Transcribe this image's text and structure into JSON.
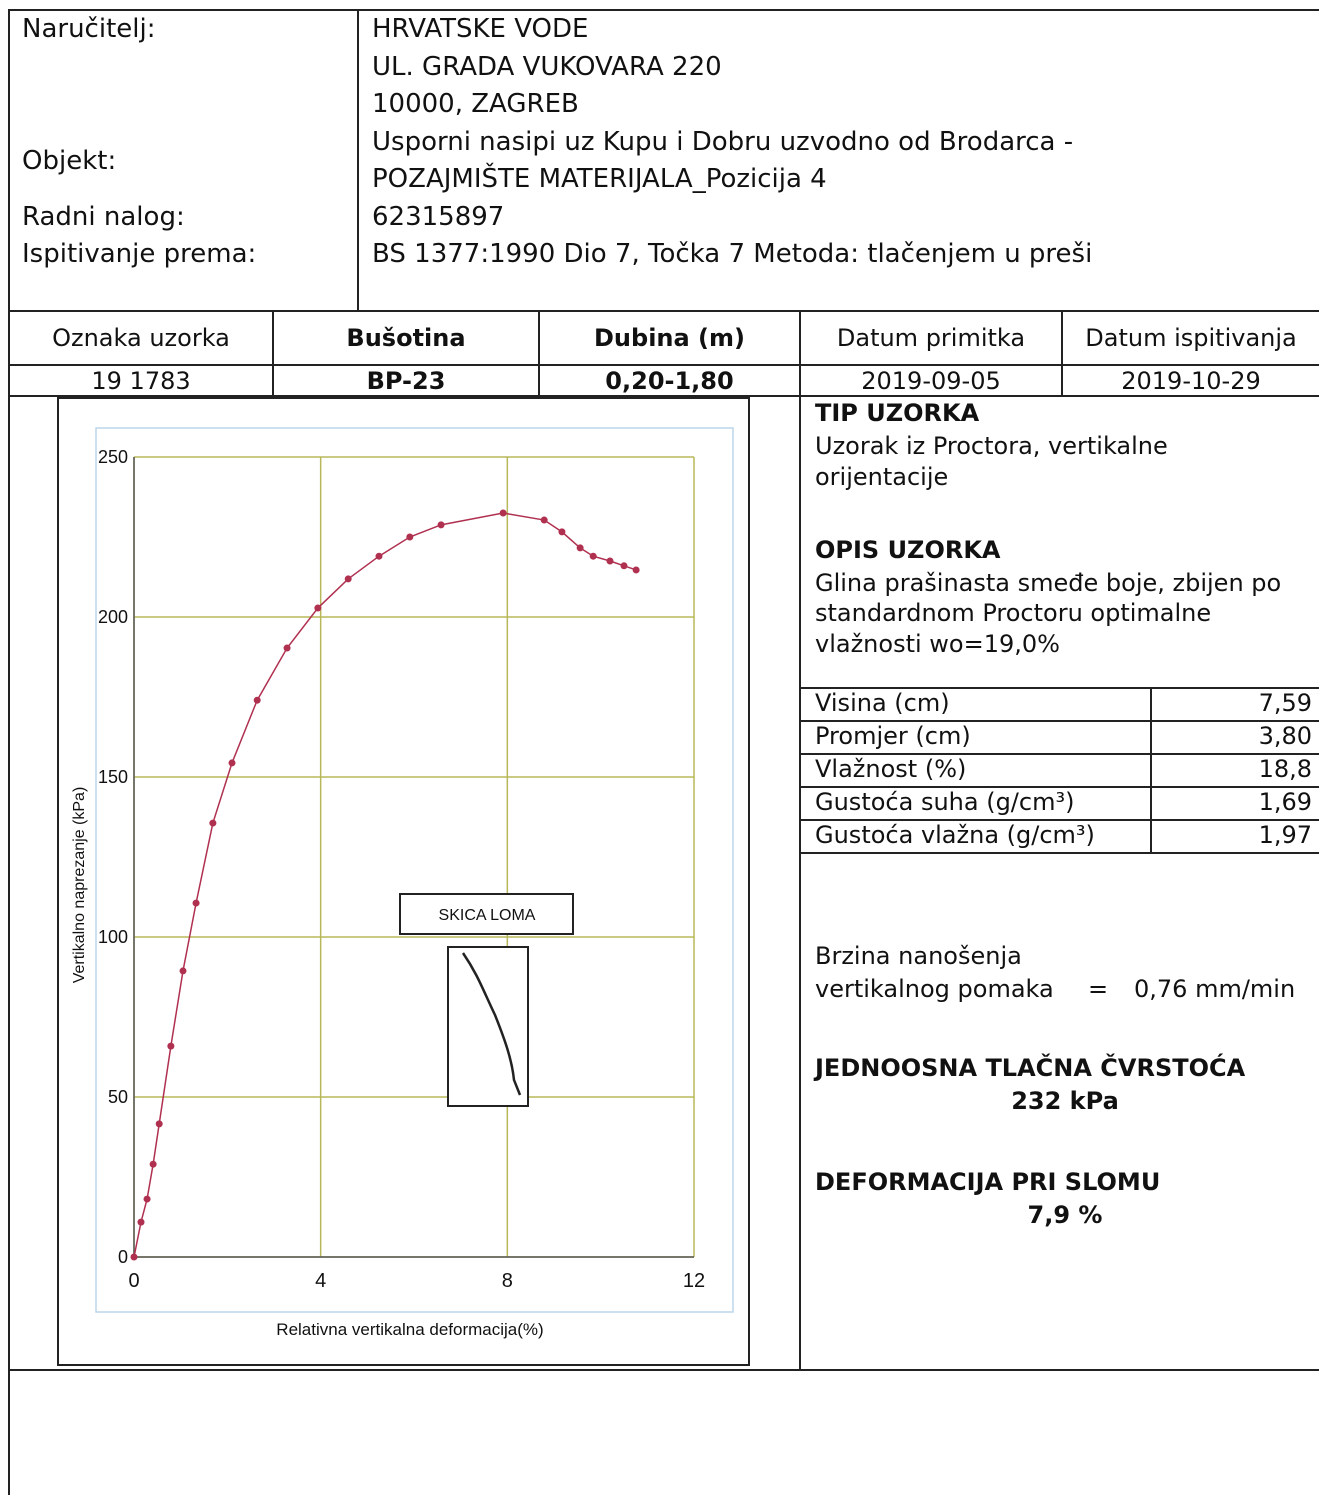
{
  "header": {
    "client_label": "Naručitelj:",
    "client_lines": [
      "HRVATSKE VODE",
      "UL. GRADA VUKOVARA 220",
      "10000, ZAGREB"
    ],
    "object_label": "Objekt:",
    "object_lines": [
      "Usporni nasipi uz Kupu i Dobru uzvodno od Brodarca -",
      "POZAJMIŠTE MATERIJALA_Pozicija 4"
    ],
    "order_label": "Radni nalog:",
    "order_value": "62315897",
    "method_label": "Ispitivanje prema:",
    "method_value": "BS 1377:1990 Dio 7, Točka 7 Metoda: tlačenjem u preši"
  },
  "sample_table": {
    "headers": [
      "Oznaka uzorka",
      "Bušotina",
      "Dubina (m)",
      "Datum primitka",
      "Datum ispitivanja"
    ],
    "row": [
      "19 1783",
      "BP-23",
      "0,20-1,80",
      "2019-09-05",
      "2019-10-29"
    ]
  },
  "chart_data": {
    "type": "line",
    "x_label": "Relativna vertikalna deformacija(%)",
    "y_label": "Vertikalno naprezanje (kPa)",
    "annotation": "SKICA LOMA",
    "color": "#b03050",
    "grid": true,
    "x": [
      0,
      0.15,
      0.28,
      0.41,
      0.54,
      0.79,
      1.05,
      1.33,
      1.69,
      2.1,
      2.64,
      3.28,
      3.94,
      4.59,
      5.25,
      5.91,
      6.58,
      7.91,
      8.79,
      9.17,
      9.56,
      9.84,
      10.2,
      10.5,
      10.76
    ],
    "values": [
      0,
      10.9,
      18.1,
      29,
      41.6,
      65.9,
      89.4,
      110.6,
      135.6,
      154.4,
      174,
      190.3,
      202.8,
      211.9,
      219,
      225,
      228.8,
      232.5,
      230.3,
      226.6,
      221.6,
      219,
      217.5,
      216,
      214.7
    ],
    "xlim": [
      0,
      12
    ],
    "ylim": [
      0,
      250
    ],
    "xticks": [
      0,
      4,
      8,
      12
    ],
    "yticks": [
      0,
      50,
      100,
      150,
      200,
      250
    ]
  },
  "sample_info": {
    "type_label": "TIP UZORKA",
    "type_lines": [
      "Uzorak iz Proctora, vertikalne",
      "orijentacije"
    ],
    "desc_label": "OPIS UZORKA",
    "desc_lines": [
      "Glina prašinasta smeđe boje, zbijen po",
      "standardnom Proctoru optimalne",
      "vlažnosti wo=19,0%"
    ],
    "properties": [
      [
        "Visina (cm)",
        "7,59"
      ],
      [
        "Promjer (cm)",
        "3,80"
      ],
      [
        "Vlažnost (%)",
        "18,8"
      ],
      [
        "Gustoća suha (g/cm³)",
        "1,69"
      ],
      [
        "Gustoća vlažna (g/cm³)",
        "1,97"
      ]
    ],
    "rate_lines": [
      "Brzina nanošenja",
      "vertikalnog pomaka"
    ],
    "rate_eq": "=",
    "rate_value": "0,76 mm/min",
    "strength_label": "JEDNOOSNA TLAČNA ČVRSTOĆA",
    "strength_value": "232 kPa",
    "deformation_label": "DEFORMACIJA PRI SLOMU",
    "deformation_value": "7,9 %"
  }
}
